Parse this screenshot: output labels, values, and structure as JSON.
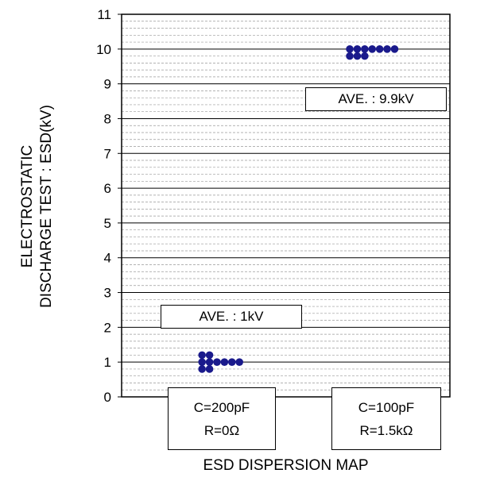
{
  "chart_data": {
    "type": "scatter",
    "title": "",
    "xlabel": "ESD DISPERSION MAP",
    "ylabel_lines": [
      "ELECTROSTATIC",
      "DISCHARGE TEST : ESD(kV)"
    ],
    "ylim": [
      0,
      11
    ],
    "y_ticks": [
      "0",
      "1",
      "2",
      "3",
      "4",
      "5",
      "6",
      "7",
      "8",
      "9",
      "10",
      "11"
    ],
    "grid": true,
    "marker_color": "#1a1a8c",
    "categories": [
      {
        "line1": "C=200pF",
        "line2": "R=0Ω"
      },
      {
        "line1": "C=100pF",
        "line2": "R=1.5kΩ"
      }
    ],
    "series": [
      {
        "values": [
          0.8,
          0.8,
          1.0,
          1.0,
          1.0,
          1.0,
          1.0,
          1.0,
          1.2,
          1.2
        ],
        "average_label": "AVE. : 1kV"
      },
      {
        "values": [
          9.8,
          9.8,
          9.8,
          10.0,
          10.0,
          10.0,
          10.0,
          10.0,
          10.0,
          10.0
        ],
        "average_label": "AVE. : 9.9kV"
      }
    ]
  }
}
